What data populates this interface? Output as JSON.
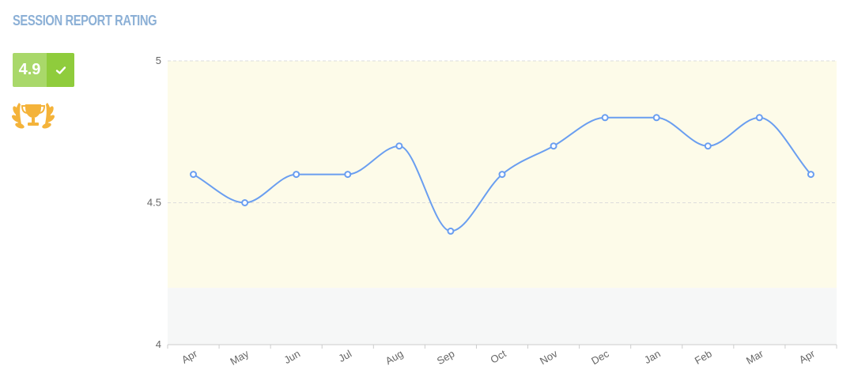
{
  "header": {
    "title": "SESSION REPORT RATING"
  },
  "rating": {
    "score": "4.9",
    "status_icon": "check-icon",
    "award_icon": "trophy-icon"
  },
  "colors": {
    "title": "#8cb0d6",
    "line": "#6a9ef0",
    "band_upper": "#fdfbe9",
    "band_lower": "#f6f7f7",
    "badge_left": "#a9d86a",
    "badge_right": "#8fcc3c",
    "trophy": "#f4b33a"
  },
  "chart_data": {
    "type": "line",
    "title": "",
    "xlabel": "",
    "ylabel": "",
    "categories": [
      "Apr",
      "May",
      "Jun",
      "Jul",
      "Aug",
      "Sep",
      "Oct",
      "Nov",
      "Dec",
      "Jan",
      "Feb",
      "Mar",
      "Apr"
    ],
    "series": [
      {
        "values": [
          4.6,
          4.5,
          4.6,
          4.6,
          4.7,
          4.4,
          4.6,
          4.7,
          4.8,
          4.8,
          4.7,
          4.8,
          4.6
        ]
      }
    ],
    "ylim": [
      4,
      5
    ],
    "yticks": [
      "4",
      "4.5",
      "5"
    ],
    "bands": [
      {
        "from": 4.2,
        "to": 5,
        "color": "#fdfbe9"
      },
      {
        "from": 4,
        "to": 4.2,
        "color": "#f6f7f7"
      }
    ],
    "grid": true,
    "legend": "none",
    "smooth": true
  }
}
